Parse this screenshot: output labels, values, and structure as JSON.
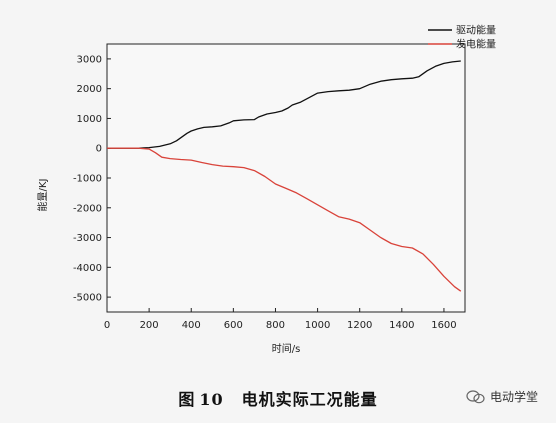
{
  "chart_data": {
    "type": "line",
    "xlabel": "时间/s",
    "ylabel": "能量/KJ",
    "xlim": [
      0,
      1700
    ],
    "ylim": [
      -5500,
      3500
    ],
    "xticks": [
      0,
      200,
      400,
      600,
      800,
      1000,
      1200,
      1400,
      1600
    ],
    "yticks": [
      3000,
      2000,
      1000,
      0,
      -1000,
      -2000,
      -3000,
      -4000,
      -5000
    ],
    "yticklabels": [
      "3000",
      "2000",
      "1000",
      "0",
      "-1000",
      "-2000",
      "-3000",
      "-4000",
      "-5000"
    ],
    "grid": false,
    "legend": "top-right",
    "series": [
      {
        "name": "驱动能量",
        "color": "#111111",
        "x": [
          0,
          150,
          200,
          250,
          300,
          330,
          360,
          380,
          400,
          430,
          460,
          500,
          540,
          580,
          600,
          650,
          700,
          720,
          760,
          800,
          830,
          860,
          880,
          920,
          960,
          1000,
          1050,
          1100,
          1150,
          1200,
          1250,
          1300,
          1350,
          1400,
          1450,
          1480,
          1520,
          1560,
          1600,
          1640,
          1680
        ],
        "y": [
          0,
          0,
          20,
          60,
          150,
          250,
          400,
          500,
          580,
          650,
          700,
          720,
          750,
          850,
          920,
          950,
          960,
          1050,
          1150,
          1200,
          1250,
          1350,
          1450,
          1550,
          1700,
          1850,
          1900,
          1930,
          1950,
          2000,
          2150,
          2250,
          2300,
          2330,
          2350,
          2400,
          2600,
          2750,
          2850,
          2900,
          2930
        ]
      },
      {
        "name": "发电能量",
        "color": "#d9433a",
        "x": [
          0,
          150,
          200,
          230,
          260,
          300,
          350,
          400,
          450,
          500,
          550,
          600,
          650,
          700,
          750,
          800,
          850,
          900,
          950,
          1000,
          1050,
          1100,
          1150,
          1200,
          1250,
          1300,
          1350,
          1400,
          1450,
          1500,
          1550,
          1600,
          1650,
          1680
        ],
        "y": [
          0,
          0,
          -30,
          -150,
          -300,
          -350,
          -380,
          -400,
          -480,
          -550,
          -600,
          -620,
          -650,
          -750,
          -950,
          -1200,
          -1350,
          -1500,
          -1700,
          -1900,
          -2100,
          -2300,
          -2380,
          -2500,
          -2750,
          -3000,
          -3200,
          -3300,
          -3350,
          -3550,
          -3900,
          -4300,
          -4650,
          -4800
        ]
      }
    ]
  },
  "caption": {
    "label": "图",
    "number": "10",
    "text": "电机实际工况能量"
  },
  "watermark": {
    "text": "电动学堂"
  }
}
